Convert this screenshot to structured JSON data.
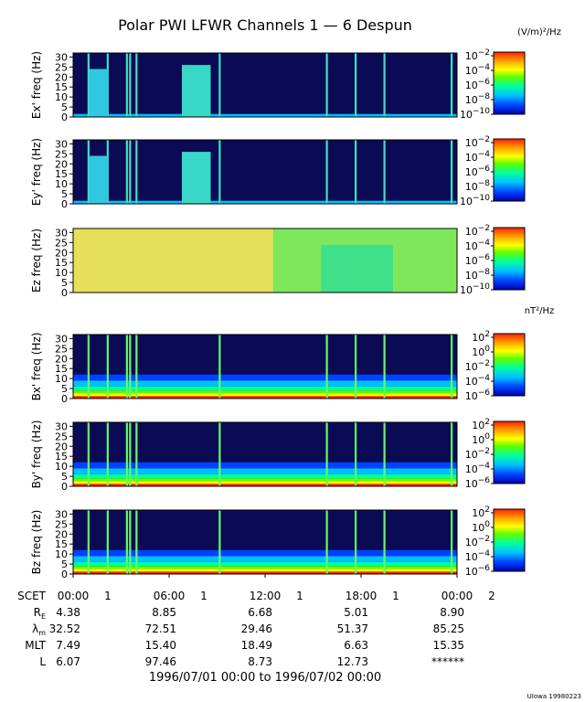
{
  "title": "Polar PWI LFWR Channels 1 — 6 Despun",
  "footer": "1996/07/01 00:00 to 1996/07/02 00:00",
  "credit": "UIowa 19980223",
  "colors": {
    "colormap": [
      "#0000aa",
      "#0040ff",
      "#00c0ff",
      "#00ffa0",
      "#60ff00",
      "#ffff00",
      "#ffa000",
      "#ff2000"
    ],
    "background": "#0a0a55",
    "frame": "#000000"
  },
  "chart_data": {
    "type": "heatmap",
    "x_range_hours": [
      0,
      24
    ],
    "y_range_hz": [
      0,
      32
    ],
    "y_ticks": [
      "0",
      "5",
      "10",
      "15",
      "20",
      "25",
      "30"
    ],
    "colorbar_units": [
      "(V/m)²/Hz",
      "nT²/Hz"
    ],
    "panels": [
      {
        "ylabel": "Ex' freq (Hz)",
        "cb_labels": [
          {
            "b": "10",
            "e": "−2"
          },
          {
            "b": "10",
            "e": "−4"
          },
          {
            "b": "10",
            "e": "−6"
          },
          {
            "b": "10",
            "e": "−8"
          },
          {
            "b": "10",
            "e": "−10"
          }
        ],
        "units": "(V/m)²/Hz"
      },
      {
        "ylabel": "Ey' freq (Hz)",
        "cb_labels": [
          {
            "b": "10",
            "e": "−2"
          },
          {
            "b": "10",
            "e": "−4"
          },
          {
            "b": "10",
            "e": "−6"
          },
          {
            "b": "10",
            "e": "−8"
          },
          {
            "b": "10",
            "e": "−10"
          }
        ]
      },
      {
        "ylabel": "Ez freq (Hz)",
        "cb_labels": [
          {
            "b": "10",
            "e": "−2"
          },
          {
            "b": "10",
            "e": "−4"
          },
          {
            "b": "10",
            "e": "−6"
          },
          {
            "b": "10",
            "e": "−8"
          },
          {
            "b": "10",
            "e": "−10"
          }
        ]
      },
      {
        "ylabel": "Bx' freq (Hz)",
        "cb_labels": [
          {
            "b": "10",
            "e": "2"
          },
          {
            "b": "10",
            "e": "0"
          },
          {
            "b": "10",
            "e": "−2"
          },
          {
            "b": "10",
            "e": "−4"
          },
          {
            "b": "10",
            "e": "−6"
          }
        ],
        "units": "nT²/Hz"
      },
      {
        "ylabel": "By' freq (Hz)",
        "cb_labels": [
          {
            "b": "10",
            "e": "2"
          },
          {
            "b": "10",
            "e": "0"
          },
          {
            "b": "10",
            "e": "−2"
          },
          {
            "b": "10",
            "e": "−4"
          },
          {
            "b": "10",
            "e": "−6"
          }
        ]
      },
      {
        "ylabel": "Bz freq (Hz)",
        "cb_labels": [
          {
            "b": "10",
            "e": "2"
          },
          {
            "b": "10",
            "e": "0"
          },
          {
            "b": "10",
            "e": "−2"
          },
          {
            "b": "10",
            "e": "−4"
          },
          {
            "b": "10",
            "e": "−6"
          }
        ]
      }
    ],
    "x_ticks": [
      {
        "hour": 0,
        "label": "00:00",
        "day": "1"
      },
      {
        "hour": 6,
        "label": "06:00",
        "day": "1"
      },
      {
        "hour": 12,
        "label": "12:00",
        "day": "1"
      },
      {
        "hour": 18,
        "label": "18:00",
        "day": "1"
      },
      {
        "hour": 24,
        "label": "00:00",
        "day": "2"
      }
    ],
    "ephemeris": {
      "rows": [
        {
          "label": "SCET",
          "sub": "",
          "values": []
        },
        {
          "label": "R",
          "sub": "E",
          "values": [
            "4.38",
            "8.85",
            "6.68",
            "5.01",
            "8.90"
          ]
        },
        {
          "label": "λ",
          "sub": "m",
          "values": [
            "32.52",
            "72.51",
            "29.46",
            "51.37",
            "85.25"
          ]
        },
        {
          "label": "MLT",
          "sub": "",
          "values": [
            "7.49",
            "15.40",
            "18.49",
            "6.63",
            "15.35"
          ]
        },
        {
          "label": "L",
          "sub": "",
          "values": [
            "6.07",
            "97.46",
            "8.73",
            "12.73",
            "******"
          ]
        }
      ]
    },
    "events_hours": [
      0.9,
      2.1,
      3.3,
      3.5,
      3.9,
      9.1,
      15.8,
      17.6,
      19.4,
      23.6
    ]
  }
}
